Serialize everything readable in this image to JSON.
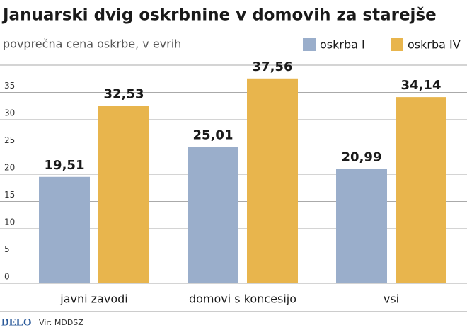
{
  "chart_data": {
    "type": "bar",
    "title": "Januarski dvig oskrbnine v domovih za starejše",
    "subtitle": "povprečna cena oskrbe, v evrih",
    "categories": [
      "javni zavodi",
      "domovi s koncesijo",
      "vsi"
    ],
    "series": [
      {
        "name": "oskrba I",
        "color": "#9aaecb",
        "values": [
          19.51,
          25.01,
          20.99
        ],
        "value_labels": [
          "19,51",
          "25,01",
          "20,99"
        ]
      },
      {
        "name": "oskrba IV",
        "color": "#e8b54d",
        "values": [
          32.53,
          37.56,
          34.14
        ],
        "value_labels": [
          "32,53",
          "37,56",
          "34,14"
        ]
      }
    ],
    "ylim": [
      0,
      40
    ],
    "yticks": [
      0,
      5,
      10,
      15,
      20,
      25,
      30,
      35
    ],
    "grid": true,
    "legend": "top-right",
    "logo": "DELO",
    "source": "Vir: MDDSZ"
  }
}
